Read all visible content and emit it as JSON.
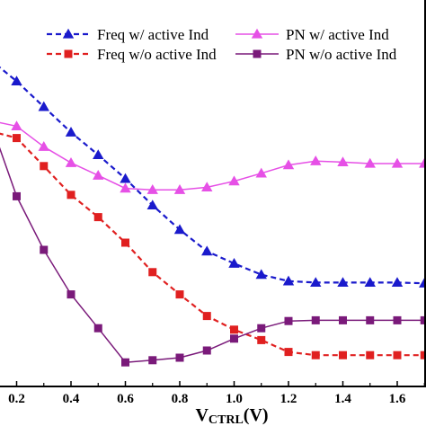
{
  "chart_data": {
    "type": "line",
    "xlabel": "V",
    "xlabel_sub": "CTRL",
    "xlabel_unit": "(V)",
    "xlim": [
      0.15,
      1.7
    ],
    "ylim": [
      0,
      1
    ],
    "x_ticks": [
      "0.2",
      "0.4",
      "0.6",
      "0.8",
      "1.0",
      "1.2",
      "1.4",
      "1.6"
    ],
    "x_tick_values": [
      0.2,
      0.4,
      0.6,
      0.8,
      1.0,
      1.2,
      1.4,
      1.6
    ],
    "grid": false,
    "legend_position": "top",
    "series": [
      {
        "name": "Freq w/ active Ind",
        "color": "#1a1acc",
        "dash": true,
        "marker": "triangle",
        "x": [
          0.1,
          0.2,
          0.3,
          0.4,
          0.5,
          0.6,
          0.7,
          0.8,
          0.9,
          1.0,
          1.1,
          1.2,
          1.3,
          1.4,
          1.5,
          1.6,
          1.7
        ],
        "y": [
          0.911,
          0.849,
          0.778,
          0.707,
          0.644,
          0.578,
          0.504,
          0.436,
          0.376,
          0.342,
          0.311,
          0.293,
          0.289,
          0.289,
          0.289,
          0.289,
          0.287
        ]
      },
      {
        "name": "PN w/ active Ind",
        "color": "#e650e6",
        "dash": false,
        "marker": "triangle",
        "x": [
          0.1,
          0.2,
          0.3,
          0.4,
          0.5,
          0.6,
          0.7,
          0.8,
          0.9,
          1.0,
          1.1,
          1.2,
          1.3,
          1.4,
          1.5,
          1.6,
          1.7
        ],
        "y": [
          0.74,
          0.724,
          0.667,
          0.622,
          0.587,
          0.551,
          0.547,
          0.547,
          0.554,
          0.571,
          0.593,
          0.616,
          0.627,
          0.624,
          0.62,
          0.62,
          0.62
        ]
      },
      {
        "name": "Freq w/o active Ind",
        "color": "#e02020",
        "dash": true,
        "marker": "square",
        "x": [
          0.1,
          0.2,
          0.3,
          0.4,
          0.5,
          0.6,
          0.7,
          0.8,
          0.9,
          1.0,
          1.1,
          1.2,
          1.3,
          1.4,
          1.5,
          1.6,
          1.7
        ],
        "y": [
          0.711,
          0.691,
          0.613,
          0.533,
          0.471,
          0.4,
          0.318,
          0.256,
          0.196,
          0.158,
          0.129,
          0.096,
          0.087,
          0.087,
          0.087,
          0.087,
          0.087
        ]
      },
      {
        "name": "PN w/o active Ind",
        "color": "#7a1a7a",
        "dash": false,
        "marker": "square",
        "x": [
          0.1,
          0.2,
          0.3,
          0.4,
          0.5,
          0.6,
          0.7,
          0.8,
          0.9,
          1.0,
          1.1,
          1.2,
          1.3,
          1.4,
          1.5,
          1.6,
          1.7
        ],
        "y": [
          0.744,
          0.529,
          0.38,
          0.256,
          0.162,
          0.067,
          0.073,
          0.08,
          0.1,
          0.133,
          0.162,
          0.182,
          0.184,
          0.184,
          0.184,
          0.184,
          0.184
        ]
      }
    ]
  }
}
